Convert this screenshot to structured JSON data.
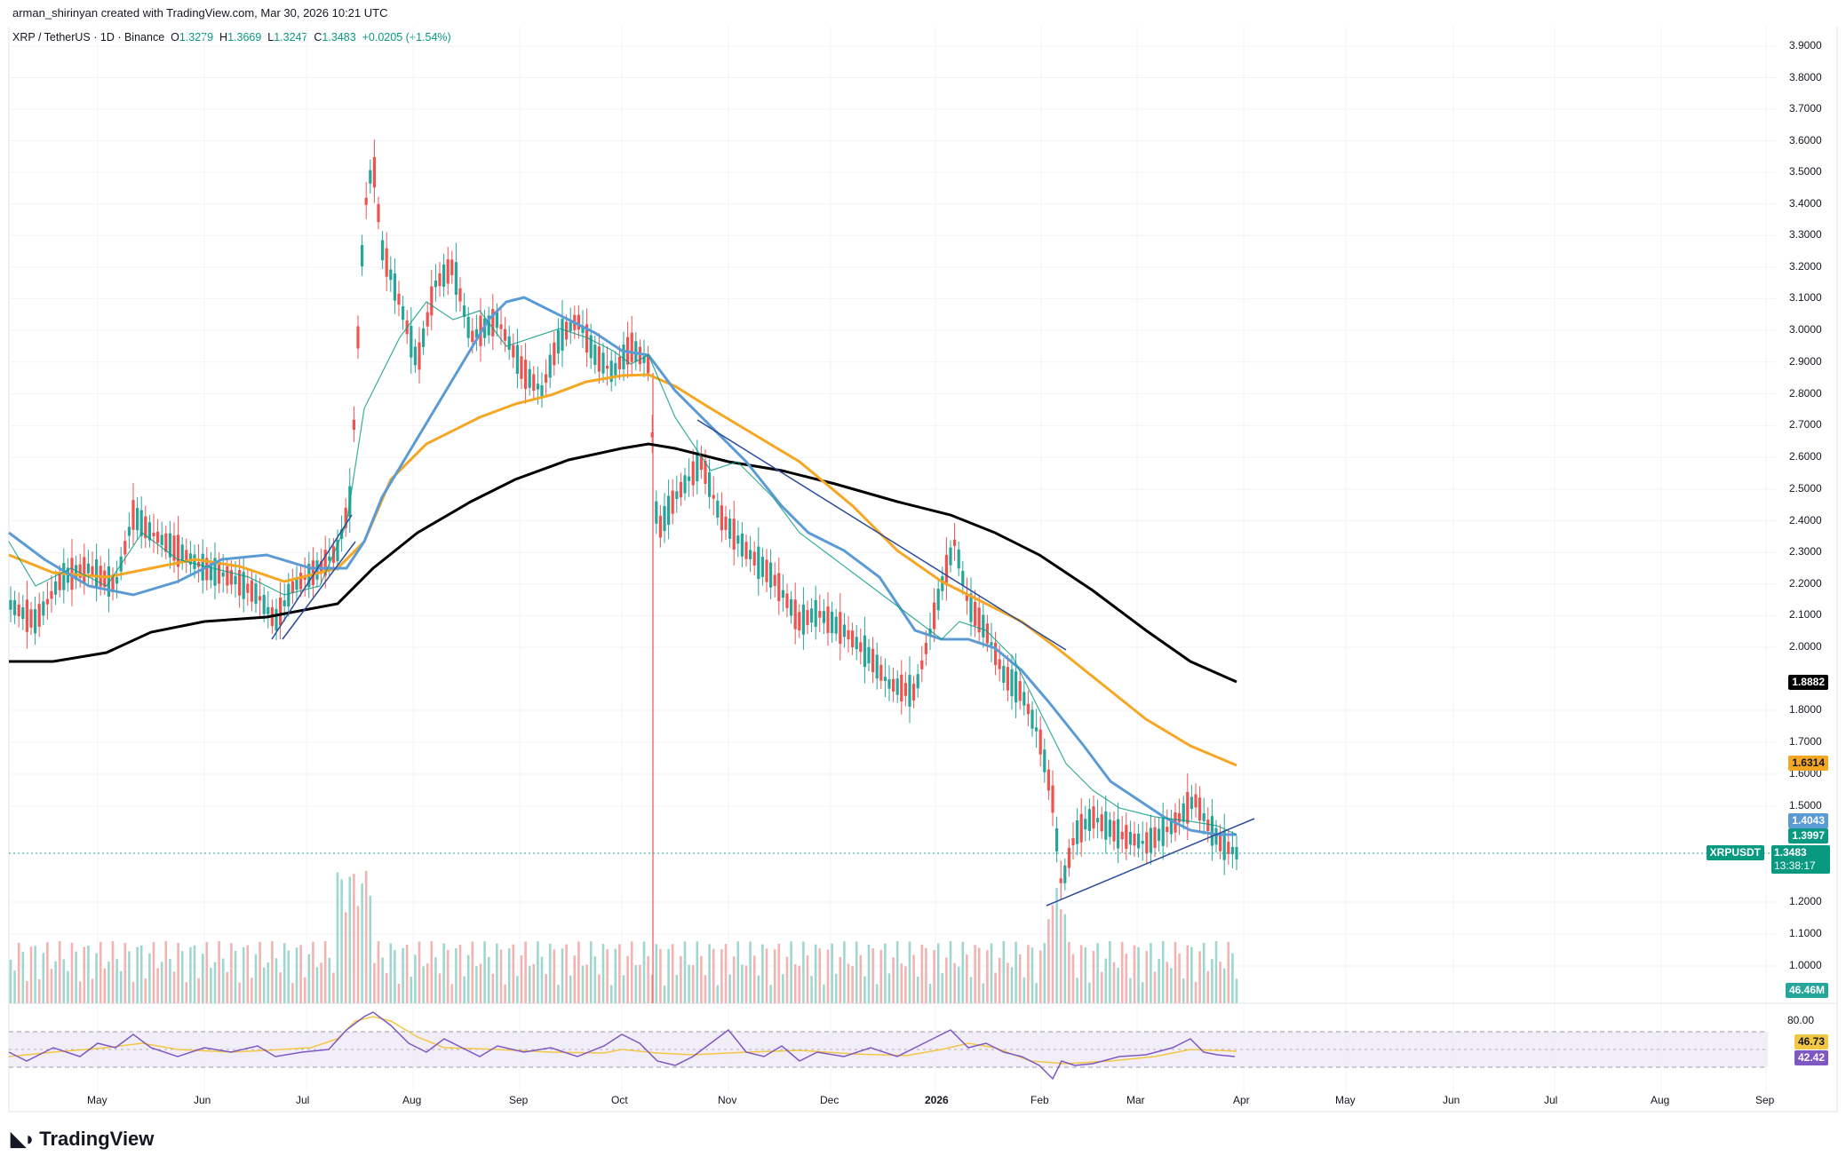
{
  "header": {
    "credit": "arman_shirinyan created with TradingView.com, Mar 30, 2026 10:21 UTC"
  },
  "symbol": {
    "name": "XRP / TetherUS · 1D · Binance",
    "o_label": "O",
    "o_value": "1.3279",
    "h_label": "H",
    "h_value": "1.3669",
    "l_label": "L",
    "l_value": "1.3247",
    "c_label": "C",
    "c_value": "1.3483",
    "change": "+0.0205 (+1.54%)"
  },
  "price_axis": {
    "ticks": [
      "3.9000",
      "3.8000",
      "3.7000",
      "3.6000",
      "3.5000",
      "3.4000",
      "3.3000",
      "3.2000",
      "3.1000",
      "3.0000",
      "2.9000",
      "2.8000",
      "2.7000",
      "2.6000",
      "2.5000",
      "2.4000",
      "2.3000",
      "2.2000",
      "2.1000",
      "2.0000",
      "1.8000",
      "1.7000",
      "1.6000",
      "1.5000",
      "1.2000",
      "1.1000",
      "1.0000"
    ],
    "tags": {
      "ma200": "1.8882",
      "ma100": "1.6314",
      "ma50": "1.4043",
      "ma20": "1.3997",
      "symbol": "XRPUSDT",
      "last": "1.3483",
      "countdown": "13:38:17",
      "volume": "46.46M"
    }
  },
  "rsi": {
    "upper": "80.00",
    "value_a": "46.73",
    "value_b": "42.42"
  },
  "time_axis": [
    "May",
    "Jun",
    "Jul",
    "Aug",
    "Sep",
    "Oct",
    "Nov",
    "Dec",
    "2026",
    "Feb",
    "Mar",
    "Apr",
    "May",
    "Jun",
    "Jul",
    "Aug",
    "Sep"
  ],
  "colors": {
    "up": "#26a69a",
    "down": "#ef5350",
    "ma20": "#089981",
    "ma50": "#5b9bd5",
    "ma100": "#f5a623",
    "ma200": "#000000",
    "trendline": "#2a4a9a",
    "rsi_line": "#7e57c2",
    "rsi_band": "#ede7f6"
  },
  "footer": {
    "brand": "TradingView"
  }
}
